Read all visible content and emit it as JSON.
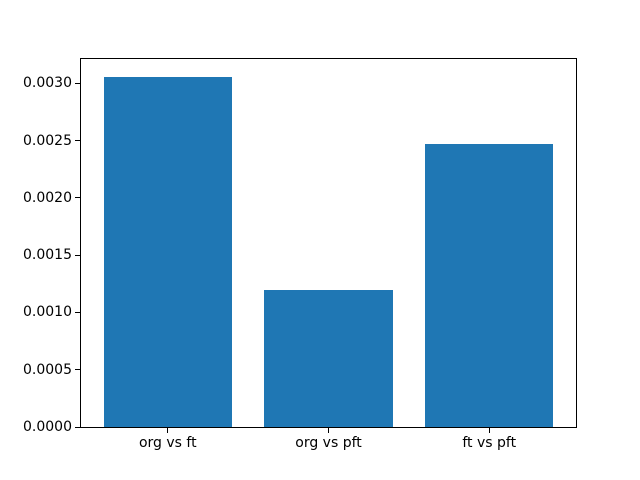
{
  "chart_data": {
    "type": "bar",
    "title": "",
    "xlabel": "",
    "ylabel": "",
    "categories": [
      "org vs ft",
      "org vs pft",
      "ft vs pft"
    ],
    "values": [
      0.00306,
      0.0012,
      0.00247
    ],
    "bar_color": "#1f77b4",
    "bar_width": 0.8,
    "xlim": [
      -0.54,
      2.54
    ],
    "ylim": [
      0,
      0.003213
    ],
    "ytick_values": [
      0.0,
      0.0005,
      0.001,
      0.0015,
      0.002,
      0.0025,
      0.003
    ],
    "ytick_labels": [
      "0.0000",
      "0.0005",
      "0.0010",
      "0.0015",
      "0.0020",
      "0.0025",
      "0.0030"
    ],
    "grid": false,
    "legend": "none",
    "spine_color": "#000000",
    "tick_color": "#000000",
    "text_color": "#000000",
    "background_color": "#ffffff"
  }
}
